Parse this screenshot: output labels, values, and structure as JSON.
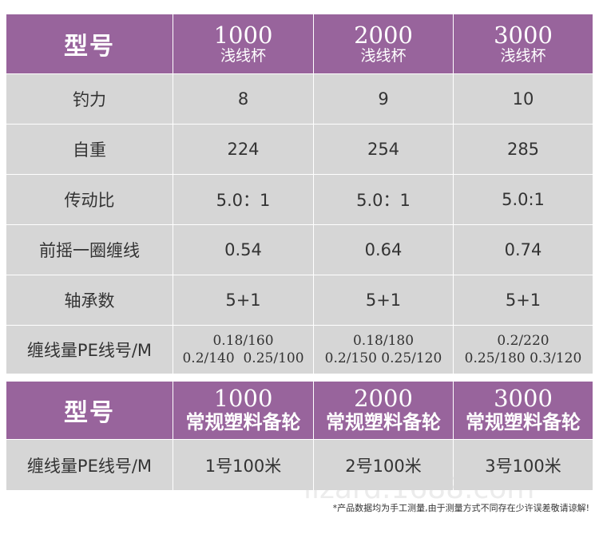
{
  "tables": [
    {
      "header": {
        "label": "型号",
        "columns": [
          {
            "model": "1000",
            "sub": "浅线杯"
          },
          {
            "model": "2000",
            "sub": "浅线杯"
          },
          {
            "model": "3000",
            "sub": "浅线杯"
          }
        ]
      },
      "rows": [
        [
          [
            "钓力"
          ],
          [
            "8"
          ],
          [
            "9"
          ],
          [
            "10"
          ]
        ],
        [
          [
            "自重"
          ],
          [
            "224"
          ],
          [
            "254"
          ],
          [
            "285"
          ]
        ],
        [
          [
            "传动比"
          ],
          [
            "5.0：1"
          ],
          [
            "5.0：1"
          ],
          [
            "5.0:1"
          ]
        ],
        [
          [
            "前摇一圈缠线"
          ],
          [
            "0.54"
          ],
          [
            "0.64"
          ],
          [
            "0.74"
          ]
        ],
        [
          [
            "轴承数"
          ],
          [
            "5+1"
          ],
          [
            "5+1"
          ],
          [
            "5+1"
          ]
        ],
        [
          [
            "缠线量PE线号/M"
          ],
          [
            "0.18/160",
            "0.2/140  0.25/100"
          ],
          [
            "0.18/180",
            "0.2/150 0.25/120"
          ],
          [
            "0.2/220",
            "0.25/180 0.3/120"
          ]
        ]
      ]
    },
    {
      "header": {
        "label": "型号",
        "columns": [
          {
            "model": "1000",
            "sub": "常规塑料备轮"
          },
          {
            "model": "2000",
            "sub": "常规塑料备轮"
          },
          {
            "model": "3000",
            "sub": "常规塑料备轮"
          }
        ]
      },
      "rows": [
        [
          [
            "缠线量PE线号/M"
          ],
          [
            "1号100米"
          ],
          [
            "2号100米"
          ],
          [
            "3号100米"
          ]
        ]
      ]
    }
  ],
  "watermark": "lizard.1688.com",
  "footnote": "*产品数据均为手工测量,由于测量方式不同存在少许误差敬请谅解!"
}
